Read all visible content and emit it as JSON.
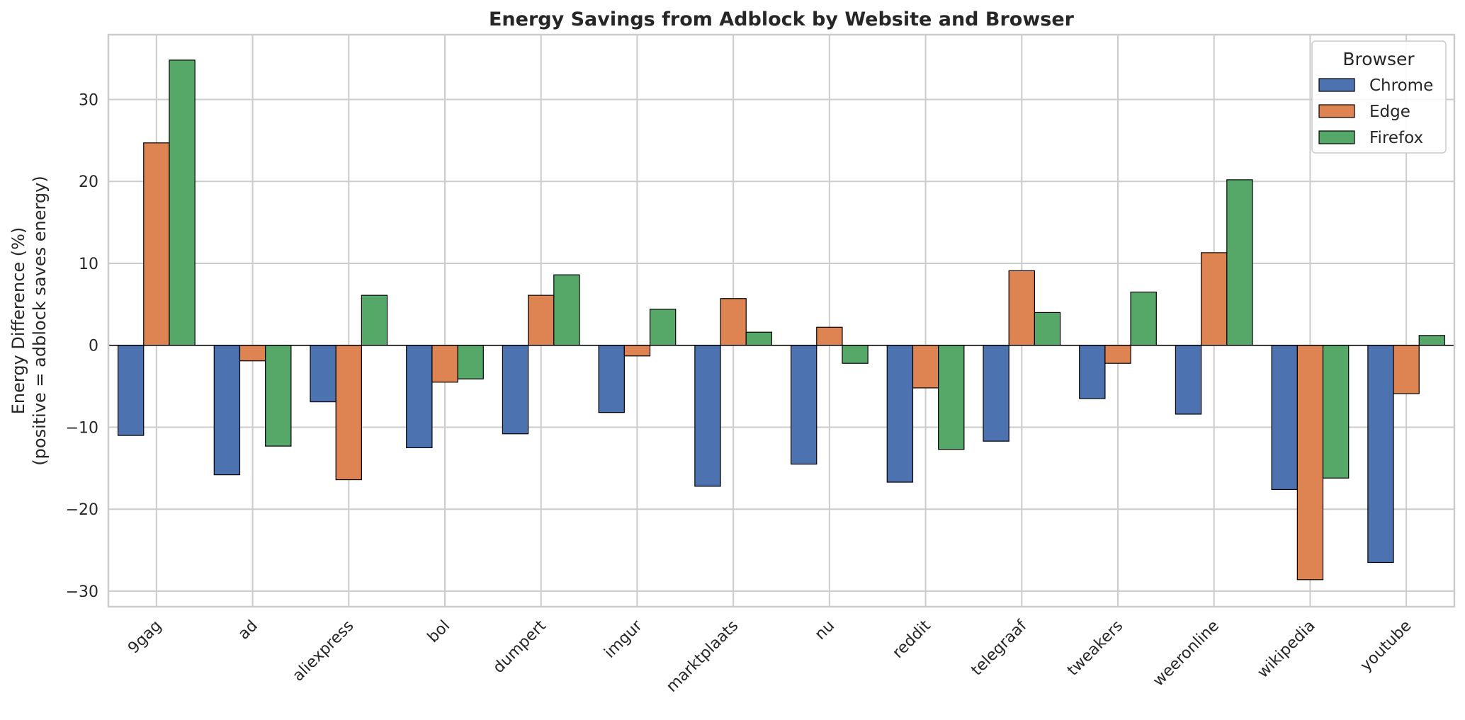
{
  "chart_data": {
    "type": "bar",
    "title": "Energy Savings from Adblock by Website and Browser",
    "xlabel": "",
    "ylabel": [
      "Energy Difference (%)",
      "(positive = adblock saves energy)"
    ],
    "ylim": [
      -31.9,
      37.9
    ],
    "yticks": [
      -30,
      -20,
      -10,
      0,
      10,
      20,
      30
    ],
    "ytick_labels": [
      "−30",
      "−20",
      "−10",
      "0",
      "10",
      "20",
      "30"
    ],
    "grid": true,
    "legend": {
      "title": "Browser",
      "placement": "top-right"
    },
    "categories": [
      "9gag",
      "ad",
      "aliexpress",
      "bol",
      "dumpert",
      "imgur",
      "marktplaats",
      "nu",
      "reddit",
      "telegraaf",
      "tweakers",
      "weeronline",
      "wikipedia",
      "youtube"
    ],
    "series": [
      {
        "name": "Chrome",
        "color": "#4c72b0",
        "values": [
          -11.0,
          -15.8,
          -6.9,
          -12.5,
          -10.8,
          -8.2,
          -17.2,
          -14.5,
          -16.7,
          -11.7,
          -6.5,
          -8.4,
          -17.6,
          -26.5
        ]
      },
      {
        "name": "Edge",
        "color": "#dd8452",
        "values": [
          24.7,
          -1.9,
          -16.4,
          -4.5,
          6.1,
          -1.3,
          5.7,
          2.2,
          -5.2,
          9.1,
          -2.2,
          11.3,
          -28.6,
          -5.9
        ]
      },
      {
        "name": "Firefox",
        "color": "#55a868",
        "values": [
          34.8,
          -12.3,
          6.1,
          -4.1,
          8.6,
          4.4,
          1.6,
          -2.2,
          -12.7,
          4.0,
          6.5,
          20.2,
          -16.2,
          1.2
        ]
      }
    ]
  }
}
